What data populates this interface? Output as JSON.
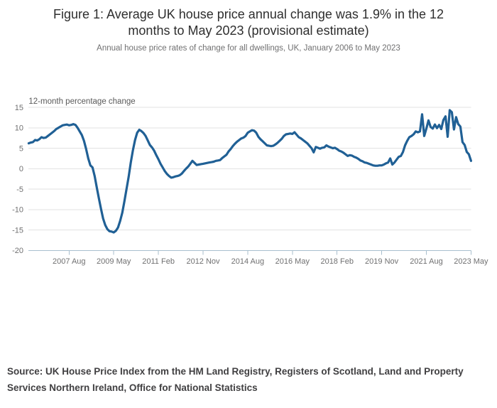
{
  "header": {
    "title": "Figure 1: Average UK house price annual change was 1.9% in the 12 months to May 2023 (provisional estimate)",
    "subtitle": "Annual house price rates of change for all dwellings, UK, January 2006 to May 2023"
  },
  "footer": {
    "source": "Source: UK House Price Index from the HM Land Registry, Registers of Scotland, Land and Property Services Northern Ireland, Office for National Statistics"
  },
  "colors": {
    "line": "#206095",
    "grid": "#e2e2e2",
    "axis": "#a8bfce",
    "tick_label": "#707071",
    "axis_title": "#595959"
  },
  "chart_data": {
    "type": "line",
    "axis_title": "12-month percentage change",
    "unit": "percent",
    "ylim": [
      -20,
      15
    ],
    "y_ticks": [
      15,
      10,
      5,
      0,
      -5,
      -10,
      -15,
      -20
    ],
    "grid": "horizontal gridlines on, bottom axis with ticks, no legend",
    "x_start_label": "January 2006",
    "x_end_label": "May 2023",
    "x_tick_labels": [
      "2007 Aug",
      "2009 May",
      "2011 Feb",
      "2012 Nov",
      "2014 Aug",
      "2016 May",
      "2018 Feb",
      "2019 Nov",
      "2021 Aug",
      "2023 May"
    ],
    "x_tick_month_indices": [
      19,
      40,
      61,
      82,
      103,
      124,
      145,
      166,
      187,
      208
    ],
    "final_value_pct": 1.9,
    "series": [
      {
        "name": "UK all dwellings, 12-month percentage change",
        "start": "2006-01",
        "frequency": "monthly",
        "values": [
          6.2,
          6.4,
          6.5,
          7.0,
          6.9,
          7.2,
          7.7,
          7.5,
          7.6,
          8.0,
          8.4,
          8.8,
          9.2,
          9.7,
          10.0,
          10.3,
          10.6,
          10.7,
          10.8,
          10.6,
          10.7,
          10.9,
          10.7,
          10.0,
          9.1,
          8.2,
          6.8,
          4.8,
          2.5,
          0.8,
          0.3,
          -1.8,
          -4.5,
          -7.2,
          -9.8,
          -12.2,
          -13.8,
          -14.8,
          -15.3,
          -15.4,
          -15.6,
          -15.2,
          -14.4,
          -12.8,
          -10.8,
          -8.0,
          -5.0,
          -2.0,
          1.5,
          4.5,
          7.0,
          8.8,
          9.5,
          9.2,
          8.7,
          8.0,
          6.9,
          5.8,
          5.2,
          4.4,
          3.3,
          2.3,
          1.2,
          0.3,
          -0.6,
          -1.3,
          -1.8,
          -2.2,
          -2.1,
          -1.9,
          -1.8,
          -1.6,
          -1.2,
          -0.6,
          0.0,
          0.5,
          1.2,
          1.9,
          1.4,
          0.9,
          1.0,
          1.1,
          1.2,
          1.3,
          1.4,
          1.5,
          1.6,
          1.7,
          1.9,
          2.0,
          2.1,
          2.6,
          3.0,
          3.4,
          4.2,
          4.8,
          5.5,
          6.1,
          6.6,
          7.0,
          7.4,
          7.6,
          8.0,
          8.8,
          9.1,
          9.4,
          9.3,
          8.8,
          7.8,
          7.2,
          6.7,
          6.2,
          5.7,
          5.6,
          5.5,
          5.6,
          5.9,
          6.3,
          6.8,
          7.3,
          8.0,
          8.4,
          8.5,
          8.6,
          8.5,
          8.9,
          8.3,
          7.7,
          7.4,
          7.0,
          6.6,
          6.2,
          5.6,
          5.0,
          4.0,
          5.3,
          5.1,
          4.9,
          5.1,
          5.2,
          5.7,
          5.4,
          5.2,
          5.0,
          5.1,
          4.8,
          4.4,
          4.2,
          3.9,
          3.5,
          3.1,
          3.3,
          3.2,
          2.9,
          2.7,
          2.4,
          2.0,
          1.8,
          1.5,
          1.4,
          1.2,
          1.0,
          0.8,
          0.7,
          0.7,
          0.8,
          0.8,
          1.0,
          1.3,
          1.5,
          2.5,
          1.0,
          1.5,
          2.2,
          2.9,
          3.1,
          4.1,
          5.7,
          6.8,
          7.7,
          8.0,
          8.4,
          9.1,
          8.9,
          9.1,
          13.3,
          8.0,
          9.8,
          11.8,
          10.2,
          9.8,
          10.8,
          9.9,
          10.7,
          9.7,
          11.9,
          12.8,
          7.8,
          14.3,
          13.8,
          9.6,
          12.6,
          10.9,
          10.3,
          6.5,
          5.8,
          4.1,
          3.5,
          1.9
        ]
      }
    ]
  }
}
